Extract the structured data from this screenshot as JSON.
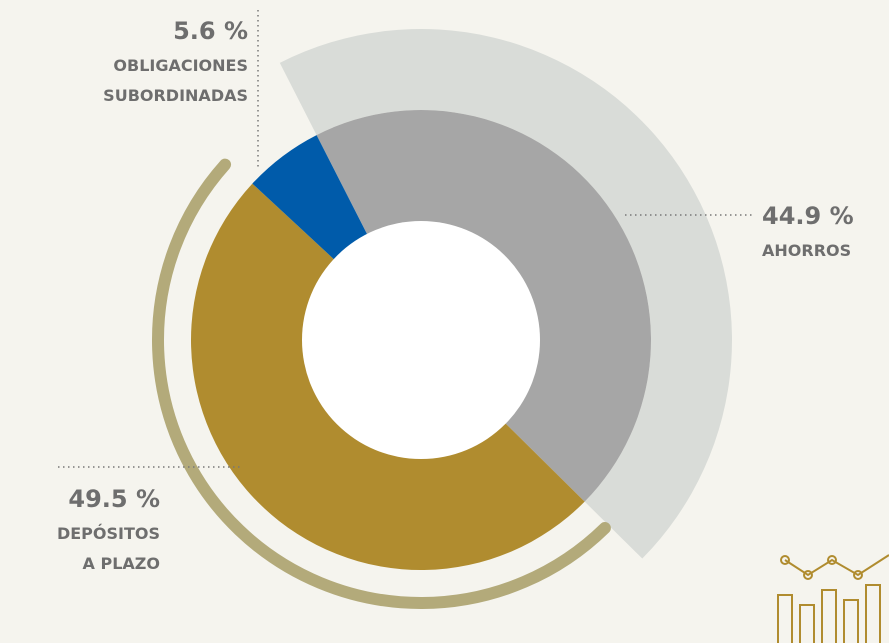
{
  "chart_data": {
    "type": "donut",
    "categories": [
      [
        "AHORROS"
      ],
      [
        "DEPÓSITOS",
        "A PLAZO"
      ],
      [
        "OBLIGACIONES",
        "SUBORDINADAS"
      ]
    ],
    "values": [
      44.9,
      49.5,
      5.6
    ],
    "value_labels": [
      "44.9 %",
      "49.5 %",
      "5.6 %"
    ],
    "colors": [
      "#a6a6a6",
      "#b08c2f",
      "#005baa"
    ]
  }
}
